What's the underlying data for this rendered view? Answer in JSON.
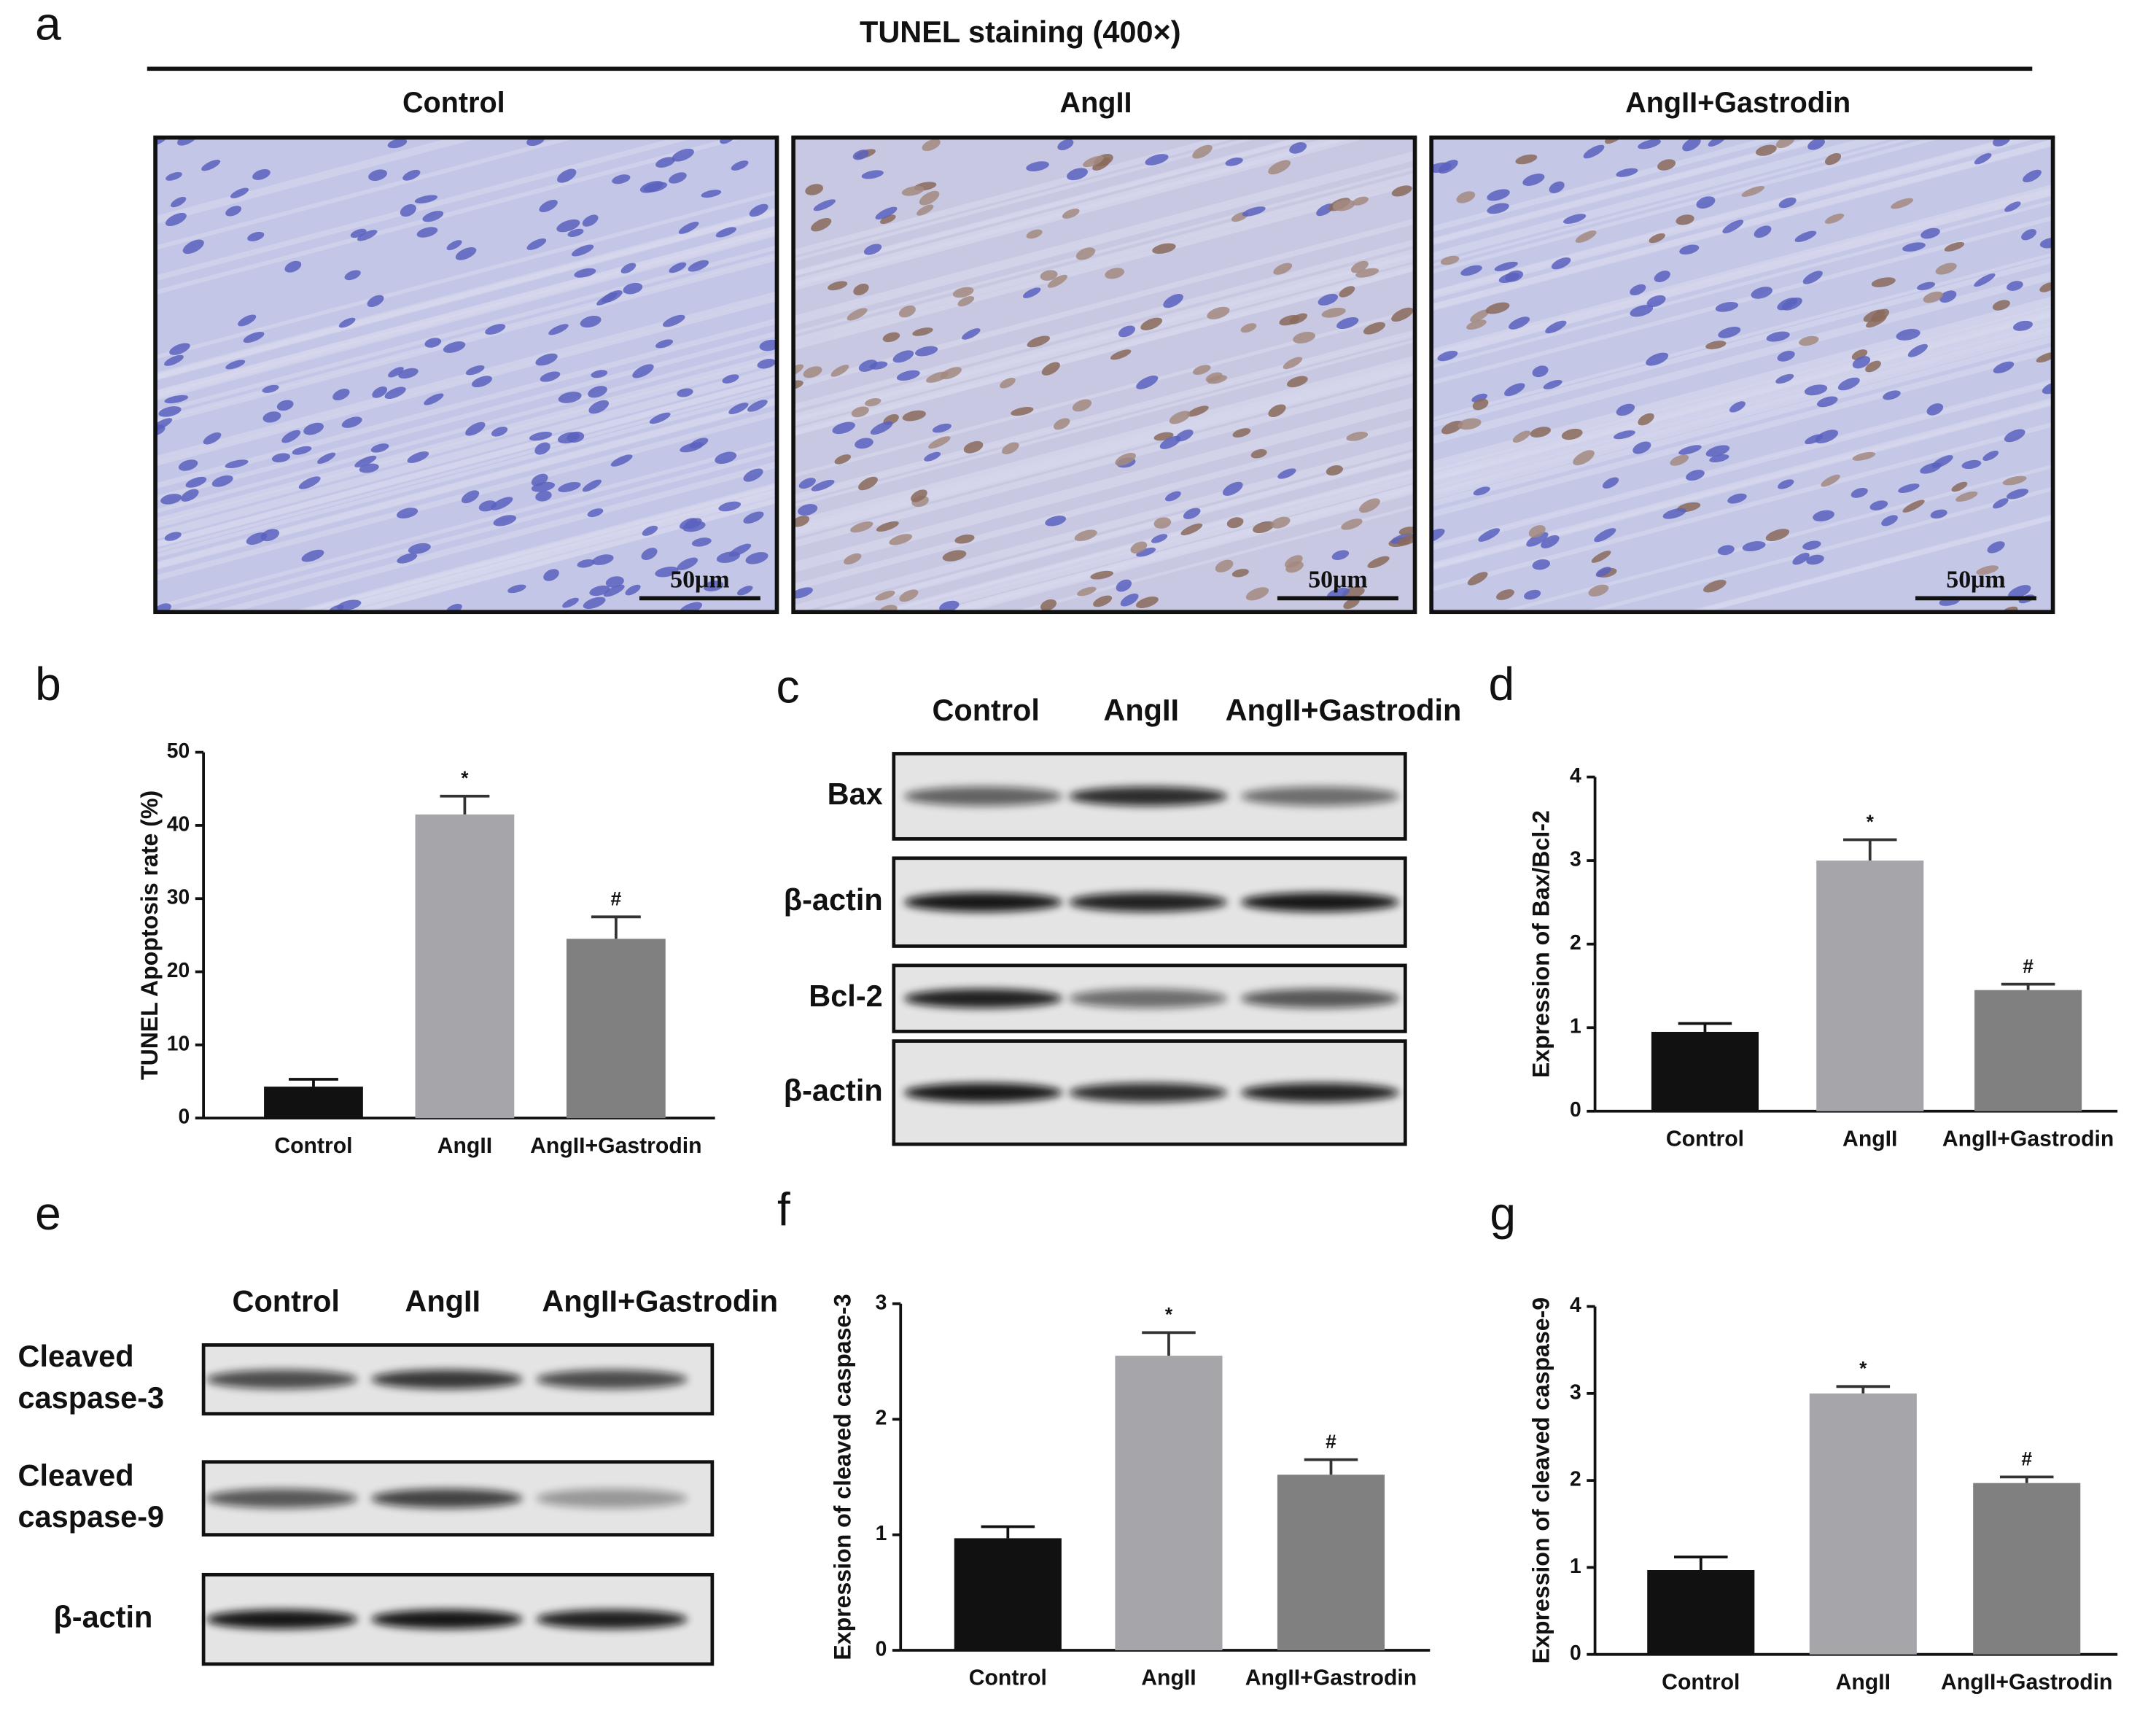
{
  "panel_letters": [
    "a",
    "b",
    "c",
    "d",
    "e",
    "f",
    "g"
  ],
  "tunel": {
    "title": "TUNEL staining (400×)",
    "groups": [
      "Control",
      "AngII",
      "AngII+Gastrodin"
    ],
    "scale_bars": [
      "50μm",
      "50μm",
      "50μm"
    ]
  },
  "blot_c": {
    "groups": [
      "Control",
      "AngII",
      "AngII+Gastrodin"
    ],
    "rows": [
      "Bax",
      "β-actin",
      "Bcl-2",
      "β-actin"
    ]
  },
  "blot_e": {
    "groups": [
      "Control",
      "AngII",
      "AngII+Gastrodin"
    ],
    "rows": [
      [
        "Cleaved",
        "caspase-3"
      ],
      [
        "Cleaved",
        "caspase-9"
      ],
      [
        "β-actin"
      ]
    ]
  },
  "chart_data": [
    {
      "type": "bar",
      "y_label": "TUNEL Apoptosis rate (%)",
      "categories": [
        "Control",
        "AngII",
        "AngII+Gastrodin"
      ],
      "values": [
        4.3,
        41.5,
        24.5
      ],
      "errors": [
        1.0,
        2.5,
        3.0
      ],
      "markers": [
        null,
        "*",
        "#"
      ],
      "colors": [
        "#111111",
        "#a6a6aa",
        "#808080"
      ],
      "ylim": [
        0,
        50
      ],
      "yticks": [
        0,
        10,
        20,
        30,
        40,
        50
      ]
    },
    {
      "type": "bar",
      "y_label": "Expression of Bax/Bcl-2",
      "categories": [
        "Control",
        "AngII",
        "AngII+Gastrodin"
      ],
      "values": [
        0.95,
        3.0,
        1.45
      ],
      "errors": [
        0.1,
        0.25,
        0.07
      ],
      "markers": [
        null,
        "*",
        "#"
      ],
      "colors": [
        "#111111",
        "#a6a6aa",
        "#808080"
      ],
      "ylim": [
        0,
        4
      ],
      "yticks": [
        0,
        1,
        2,
        3,
        4
      ]
    },
    {
      "type": "bar",
      "y_label": "Expression of cleaved caspase-3",
      "categories": [
        "Control",
        "AngII",
        "AngII+Gastrodin"
      ],
      "values": [
        0.97,
        2.55,
        1.52
      ],
      "errors": [
        0.1,
        0.2,
        0.13
      ],
      "markers": [
        null,
        "*",
        "#"
      ],
      "colors": [
        "#111111",
        "#a6a6aa",
        "#808080"
      ],
      "ylim": [
        0,
        3
      ],
      "yticks": [
        0,
        1,
        2,
        3
      ]
    },
    {
      "type": "bar",
      "y_label": "Expression of cleaved caspase-9",
      "categories": [
        "Control",
        "AngII",
        "AngII+Gastrodin"
      ],
      "values": [
        0.97,
        3.0,
        1.97
      ],
      "errors": [
        0.15,
        0.08,
        0.07
      ],
      "markers": [
        null,
        "*",
        "#"
      ],
      "colors": [
        "#111111",
        "#a6a6aa",
        "#808080"
      ],
      "ylim": [
        0,
        4
      ],
      "yticks": [
        0,
        1,
        2,
        3,
        4
      ]
    }
  ]
}
